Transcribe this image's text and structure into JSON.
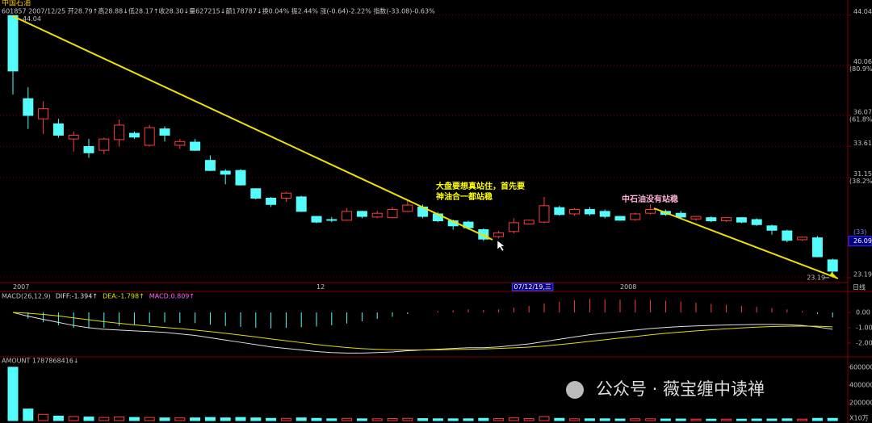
{
  "watermark": "公众号 · 薇宝缠中读禅",
  "chart_data": [
    {
      "type": "candlestick",
      "title": "中国石油",
      "subtitle": "601857 2007/12/25 开28.79↑高28.88↓低28.17↑收28.30↓量627215↓额178787↓换0.04% 振2.44% 涨(-0.64)-2.22% 指数(-33.08)-0.63%",
      "categories": [
        "2007",
        null,
        null,
        null,
        null,
        null,
        null,
        null,
        null,
        null,
        null,
        null,
        null,
        null,
        null,
        null,
        null,
        null,
        null,
        null,
        "12",
        null,
        null,
        null,
        null,
        null,
        null,
        null,
        null,
        null,
        null,
        null,
        null,
        "07/12/19,三",
        null,
        null,
        null,
        null,
        null,
        null,
        "2008",
        null,
        null,
        null,
        null,
        null,
        null,
        null,
        null,
        null,
        null,
        null,
        null,
        null,
        null
      ],
      "open": [
        44.0,
        37.4,
        35.8,
        35.4,
        34.2,
        33.6,
        33.3,
        34.15,
        34.65,
        33.7,
        35.0,
        33.7,
        33.95,
        32.5,
        31.65,
        31.7,
        30.25,
        29.5,
        29.5,
        29.6,
        28.05,
        27.8,
        27.75,
        28.45,
        28.0,
        27.95,
        28.45,
        28.8,
        28.25,
        27.7,
        27.6,
        27.0,
        26.45,
        26.85,
        27.45,
        27.6,
        28.75,
        28.25,
        28.6,
        28.45,
        28.05,
        27.8,
        28.3,
        28.45,
        28.3,
        27.85,
        27.95,
        27.7,
        27.95,
        27.8,
        27.3,
        26.9,
        26.2,
        26.35,
        24.6
      ],
      "high": [
        44.04,
        38.3,
        37.2,
        35.8,
        34.8,
        34.2,
        34.3,
        35.75,
        34.8,
        35.3,
        35.2,
        34.2,
        34.2,
        32.9,
        31.8,
        31.8,
        30.3,
        29.6,
        30.0,
        29.7,
        28.1,
        28.0,
        28.7,
        28.5,
        28.5,
        28.8,
        29.3,
        29.0,
        28.4,
        27.8,
        27.7,
        27.1,
        26.9,
        27.9,
        27.8,
        29.6,
        28.9,
        28.7,
        28.8,
        28.6,
        28.1,
        28.35,
        29.0,
        28.6,
        28.5,
        28.1,
        28.05,
        28.0,
        28.0,
        27.9,
        27.4,
        27.0,
        26.45,
        26.5,
        24.7
      ],
      "low": [
        37.73,
        35.0,
        34.6,
        34.3,
        33.2,
        32.7,
        33.0,
        33.6,
        34.2,
        33.6,
        34.0,
        33.4,
        33.25,
        31.65,
        30.6,
        30.5,
        29.4,
        28.8,
        29.2,
        28.4,
        27.5,
        27.6,
        27.7,
        27.9,
        27.9,
        27.9,
        28.4,
        27.9,
        27.6,
        27.0,
        27.0,
        26.1,
        26.3,
        26.7,
        27.4,
        27.5,
        28.1,
        28.1,
        28.1,
        27.9,
        27.7,
        27.7,
        28.2,
        28.1,
        27.9,
        27.7,
        27.6,
        27.6,
        27.5,
        27.3,
        26.6,
        26.0,
        26.1,
        24.8,
        23.19
      ],
      "close": [
        39.6,
        36.07,
        36.6,
        34.5,
        34.5,
        33.1,
        34.2,
        35.3,
        34.35,
        35.1,
        34.5,
        34.0,
        33.3,
        31.7,
        31.4,
        30.55,
        29.5,
        29.0,
        29.9,
        28.45,
        27.6,
        27.75,
        28.45,
        28.05,
        28.3,
        28.6,
        28.95,
        28.05,
        27.7,
        27.3,
        27.15,
        26.25,
        26.75,
        27.55,
        27.75,
        28.9,
        28.2,
        28.6,
        28.25,
        28.05,
        27.75,
        28.25,
        28.6,
        28.2,
        28.0,
        28.05,
        27.7,
        27.95,
        27.6,
        27.4,
        26.95,
        26.15,
        26.4,
        24.85,
        23.7
      ],
      "up_color": "#ff3c3c",
      "down_color": "#54fcfc",
      "ylim": [
        22.8,
        44.85
      ],
      "yticks": [
        44.04,
        40.06,
        36.07,
        33.61,
        31.15,
        23.19
      ],
      "ratio_labels": [
        null,
        "(80.9%)",
        "(61.8%)",
        null,
        "(38.2%)",
        null
      ],
      "max_label": 44.04,
      "min_label": 23.19,
      "last_price": 26.09,
      "annotations": [
        "大盘要想真站住，首先要",
        "神油合一都站稳",
        "中石油没有站稳",
        "(33)"
      ],
      "period_label": "日线",
      "grid": true
    },
    {
      "type": "macd",
      "title": "MACD(26,12,9)",
      "series": [
        {
          "label": "DIFF:-1.394↑",
          "color": "#e0e0e0",
          "values": [
            0,
            -0.25,
            -0.45,
            -0.65,
            -0.85,
            -1.0,
            -1.1,
            -1.15,
            -1.2,
            -1.25,
            -1.3,
            -1.4,
            -1.5,
            -1.65,
            -1.8,
            -1.95,
            -2.1,
            -2.25,
            -2.35,
            -2.45,
            -2.55,
            -2.62,
            -2.65,
            -2.65,
            -2.62,
            -2.58,
            -2.5,
            -2.45,
            -2.4,
            -2.35,
            -2.3,
            -2.3,
            -2.25,
            -2.15,
            -2.05,
            -1.9,
            -1.75,
            -1.6,
            -1.45,
            -1.35,
            -1.25,
            -1.15,
            -1.05,
            -0.98,
            -0.92,
            -0.88,
            -0.85,
            -0.82,
            -0.8,
            -0.78,
            -0.78,
            -0.8,
            -0.85,
            -0.95,
            -1.1
          ]
        },
        {
          "label": "DEA:-1.798↑",
          "color": "#e0e000",
          "values": [
            0,
            -0.05,
            -0.13,
            -0.23,
            -0.35,
            -0.48,
            -0.6,
            -0.71,
            -0.81,
            -0.9,
            -0.98,
            -1.06,
            -1.15,
            -1.25,
            -1.36,
            -1.48,
            -1.6,
            -1.73,
            -1.85,
            -1.97,
            -2.09,
            -2.2,
            -2.29,
            -2.36,
            -2.41,
            -2.44,
            -2.45,
            -2.45,
            -2.44,
            -2.42,
            -2.4,
            -2.38,
            -2.35,
            -2.31,
            -2.26,
            -2.19,
            -2.1,
            -2.0,
            -1.89,
            -1.78,
            -1.67,
            -1.57,
            -1.46,
            -1.36,
            -1.28,
            -1.2,
            -1.13,
            -1.07,
            -1.01,
            -0.96,
            -0.92,
            -0.9,
            -0.89,
            -0.9,
            -0.94
          ]
        }
      ],
      "bars_label": "MACD:0.809↑",
      "bars": [
        0,
        -0.4,
        -0.64,
        -0.84,
        -1.0,
        -1.04,
        -1.0,
        -0.88,
        -0.78,
        -0.7,
        -0.64,
        -0.68,
        -0.7,
        -0.8,
        -0.88,
        -0.94,
        -1.0,
        -1.04,
        -1.0,
        -0.96,
        -0.92,
        -0.84,
        -0.72,
        -0.58,
        -0.42,
        -0.28,
        -0.1,
        0,
        0.08,
        0.14,
        0.2,
        0.16,
        0.2,
        0.32,
        0.42,
        0.58,
        0.7,
        0.8,
        0.88,
        0.86,
        0.84,
        0.84,
        0.82,
        0.76,
        0.72,
        0.64,
        0.56,
        0.5,
        0.42,
        0.36,
        0.28,
        0.2,
        0.08,
        -0.1,
        -0.32
      ],
      "up_color": "#ff3c3c",
      "down_color": "#54fcfc",
      "ylim": [
        -2.79,
        1.32
      ],
      "yticks": [
        {
          "value": 0,
          "label": "0.00"
        },
        {
          "value": -1,
          "label": "-1.00"
        },
        {
          "value": -2,
          "label": "-2.00"
        }
      ]
    },
    {
      "type": "bar",
      "title": "AMOUNT 1787868416↓",
      "values": [
        600000,
        130000,
        70000,
        50000,
        45000,
        40000,
        35000,
        40000,
        35000,
        35000,
        30000,
        30000,
        30000,
        35000,
        30000,
        35000,
        30000,
        25000,
        25000,
        30000,
        25000,
        20000,
        25000,
        20000,
        20000,
        22000,
        25000,
        22000,
        20000,
        20000,
        20000,
        25000,
        22000,
        30000,
        22000,
        45000,
        25000,
        20000,
        20000,
        20000,
        18000,
        20000,
        20000,
        18000,
        18000,
        16000,
        16000,
        16000,
        16000,
        18000,
        18000,
        20000,
        16000,
        25000,
        25000
      ],
      "ylim": [
        0,
        690000
      ],
      "yticks": [
        600000,
        400000,
        200000
      ],
      "unit_label": "X10万"
    }
  ]
}
